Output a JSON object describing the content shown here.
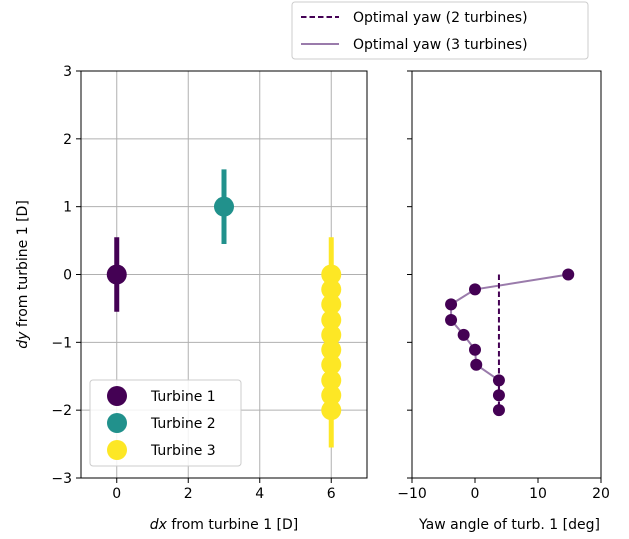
{
  "chart_data": [
    {
      "type": "scatter",
      "panel": "left",
      "xlabel": "dx from turbine 1 [D]",
      "xlabel_parts": [
        "dx",
        " from turbine 1 [D]"
      ],
      "ylabel": "dy from turbine 1 [D]",
      "ylabel_parts": [
        "dy",
        " from turbine 1 [D]"
      ],
      "xlim": [
        -1,
        7
      ],
      "ylim": [
        -3,
        3
      ],
      "xticks": [
        0,
        2,
        4,
        6
      ],
      "xtick_labels": [
        "0",
        "2",
        "4",
        "6"
      ],
      "yticks": [
        3,
        2,
        1,
        0,
        -1,
        -2,
        -3
      ],
      "ytick_labels": [
        "3",
        "2",
        "1",
        "0",
        "−1",
        "−2",
        "−3"
      ],
      "grid": true,
      "legend_position": "lower-left",
      "series": [
        {
          "name": "Turbine 1",
          "color": "#440154",
          "points": [
            {
              "x": 0,
              "y": 0
            }
          ],
          "rotor_bars": [
            {
              "x": 0,
              "y_min": -0.55,
              "y_max": 0.55
            }
          ]
        },
        {
          "name": "Turbine 2",
          "color": "#21918c",
          "points": [
            {
              "x": 3,
              "y": 1
            }
          ],
          "rotor_bars": [
            {
              "x": 3,
              "y_min": 0.45,
              "y_max": 1.55
            }
          ]
        },
        {
          "name": "Turbine 3",
          "color": "#fde725",
          "points": [
            {
              "x": 6,
              "y": 0
            },
            {
              "x": 6,
              "y": -0.22
            },
            {
              "x": 6,
              "y": -0.44
            },
            {
              "x": 6,
              "y": -0.67
            },
            {
              "x": 6,
              "y": -0.89
            },
            {
              "x": 6,
              "y": -1.11
            },
            {
              "x": 6,
              "y": -1.33
            },
            {
              "x": 6,
              "y": -1.56
            },
            {
              "x": 6,
              "y": -1.78
            },
            {
              "x": 6,
              "y": -2.0
            }
          ],
          "rotor_bars": [
            {
              "x": 6,
              "y_min": -2.55,
              "y_max": 0.55
            }
          ]
        }
      ]
    },
    {
      "type": "line",
      "panel": "right",
      "xlabel": "Yaw angle of turb. 1 [deg]",
      "xlim": [
        -10,
        20
      ],
      "ylim": [
        -3,
        3
      ],
      "xticks": [
        -10,
        0,
        10,
        20
      ],
      "xtick_labels": [
        "−10",
        "0",
        "10",
        "20"
      ],
      "y_tick_labels_shown": false,
      "grid": false,
      "legend_position": "above",
      "series": [
        {
          "name": "Optimal yaw (2 turbines)",
          "color": "#440154",
          "linestyle": "dashed",
          "points": [
            {
              "x": 3.8,
              "y": 0
            },
            {
              "x": 3.8,
              "y": -2.0
            }
          ]
        },
        {
          "name": "Optimal yaw (3 turbines)",
          "color": "#9a7bab",
          "marker_color": "#440154",
          "linestyle": "solid",
          "points": [
            {
              "x": 14.8,
              "y": 0
            },
            {
              "x": 0.0,
              "y": -0.22
            },
            {
              "x": -3.8,
              "y": -0.44
            },
            {
              "x": -3.8,
              "y": -0.67
            },
            {
              "x": -1.8,
              "y": -0.89
            },
            {
              "x": 0.0,
              "y": -1.11
            },
            {
              "x": 0.2,
              "y": -1.33
            },
            {
              "x": 3.8,
              "y": -1.56
            },
            {
              "x": 3.8,
              "y": -1.78
            },
            {
              "x": 3.8,
              "y": -2.0
            }
          ]
        }
      ]
    }
  ]
}
